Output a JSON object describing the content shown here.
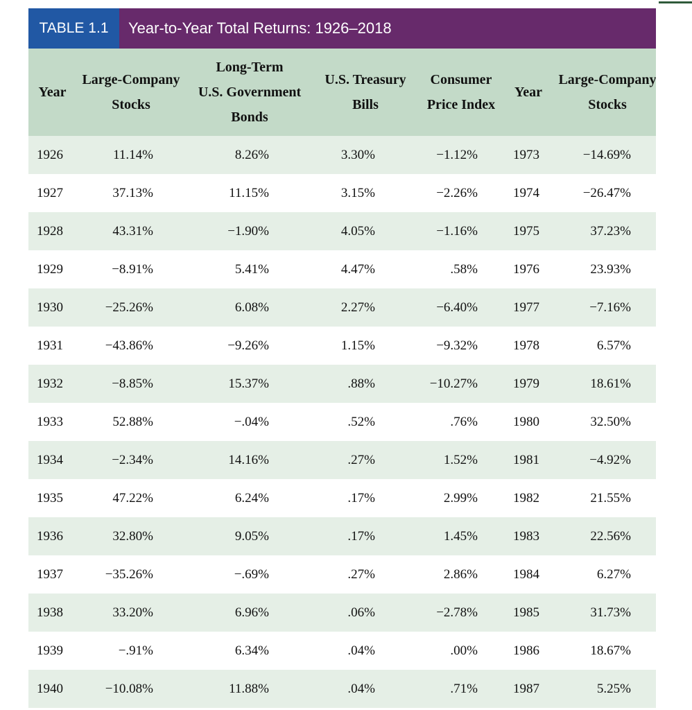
{
  "table": {
    "label": "TABLE 1.1",
    "title": "Year-to-Year Total Returns: 1926–2018",
    "colors": {
      "label_bg": "#2158a4",
      "title_bg": "#672a6b",
      "header_bg": "#c3dac8",
      "stripe_bg": "#e5efe6"
    },
    "headers": [
      "Year",
      "Large-Company\nStocks",
      "Long-Term\nU.S. Government\nBonds",
      "U.S. Treasury\nBills",
      "Consumer\nPrice Index",
      "Year",
      "Large-Company\nStocks"
    ],
    "rows": [
      [
        "1926",
        "11.14%",
        "8.26%",
        "3.30%",
        "−1.12%",
        "1973",
        "−14.69%"
      ],
      [
        "1927",
        "37.13%",
        "11.15%",
        "3.15%",
        "−2.26%",
        "1974",
        "−26.47%"
      ],
      [
        "1928",
        "43.31%",
        "−1.90%",
        "4.05%",
        "−1.16%",
        "1975",
        "37.23%"
      ],
      [
        "1929",
        "−8.91%",
        "5.41%",
        "4.47%",
        ".58%",
        "1976",
        "23.93%"
      ],
      [
        "1930",
        "−25.26%",
        "6.08%",
        "2.27%",
        "−6.40%",
        "1977",
        "−7.16%"
      ],
      [
        "1931",
        "−43.86%",
        "−9.26%",
        "1.15%",
        "−9.32%",
        "1978",
        "6.57%"
      ],
      [
        "1932",
        "−8.85%",
        "15.37%",
        ".88%",
        "−10.27%",
        "1979",
        "18.61%"
      ],
      [
        "1933",
        "52.88%",
        "−.04%",
        ".52%",
        ".76%",
        "1980",
        "32.50%"
      ],
      [
        "1934",
        "−2.34%",
        "14.16%",
        ".27%",
        "1.52%",
        "1981",
        "−4.92%"
      ],
      [
        "1935",
        "47.22%",
        "6.24%",
        ".17%",
        "2.99%",
        "1982",
        "21.55%"
      ],
      [
        "1936",
        "32.80%",
        "9.05%",
        ".17%",
        "1.45%",
        "1983",
        "22.56%"
      ],
      [
        "1937",
        "−35.26%",
        "−.69%",
        ".27%",
        "2.86%",
        "1984",
        "6.27%"
      ],
      [
        "1938",
        "33.20%",
        "6.96%",
        ".06%",
        "−2.78%",
        "1985",
        "31.73%"
      ],
      [
        "1939",
        "−.91%",
        "6.34%",
        ".04%",
        ".00%",
        "1986",
        "18.67%"
      ],
      [
        "1940",
        "−10.08%",
        "11.88%",
        ".04%",
        ".71%",
        "1987",
        "5.25%"
      ]
    ]
  }
}
